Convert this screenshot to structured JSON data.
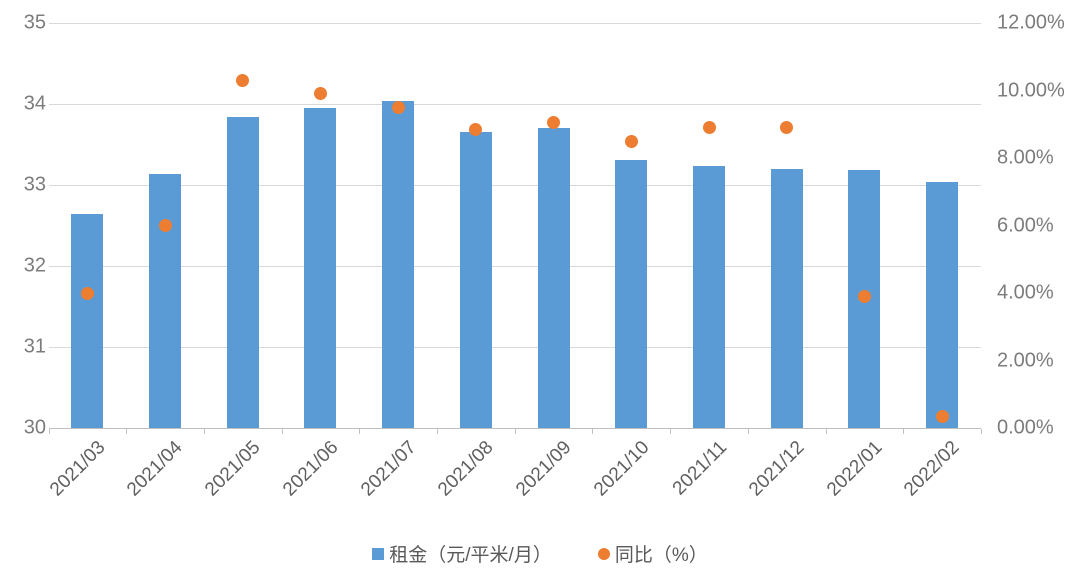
{
  "chart_data": {
    "type": "bar",
    "subtype": "combo-bar-scatter-dual-axis",
    "categories": [
      "2021/03",
      "2021/04",
      "2021/05",
      "2021/06",
      "2021/07",
      "2021/08",
      "2021/09",
      "2021/10",
      "2021/11",
      "2021/12",
      "2022/01",
      "2022/02"
    ],
    "series": [
      {
        "name": "租金（元/平米/月）",
        "type": "bar",
        "axis": "left",
        "color": "#5B9BD5",
        "values": [
          32.64,
          33.14,
          33.84,
          33.95,
          34.04,
          33.66,
          33.7,
          33.31,
          33.24,
          33.2,
          33.19,
          33.04
        ]
      },
      {
        "name": "同比（%）",
        "type": "scatter",
        "axis": "right",
        "color": "#ED7D31",
        "values": [
          4.0,
          6.0,
          10.3,
          9.9,
          9.5,
          8.85,
          9.05,
          8.5,
          8.9,
          8.9,
          3.9,
          0.35
        ]
      }
    ],
    "left_axis": {
      "min": 30,
      "max": 35,
      "step": 1,
      "tick_labels": [
        "35",
        "34",
        "33",
        "32",
        "31",
        "30"
      ]
    },
    "right_axis": {
      "min": 0,
      "max": 12,
      "step": 2,
      "tick_labels": [
        "12.00%",
        "10.00%",
        "8.00%",
        "6.00%",
        "4.00%",
        "2.00%",
        "0.00%"
      ]
    },
    "grid": true,
    "legend_position": "bottom",
    "title": ""
  },
  "colors": {
    "bar": "#5B9BD5",
    "dot": "#ED7D31",
    "gridline": "#D9D9D9",
    "axis_line": "#BFBFBF",
    "axis_text": "#7C7C7C",
    "x_label_text": "#606060",
    "legend_text": "#595959",
    "background": "#FFFFFF"
  }
}
